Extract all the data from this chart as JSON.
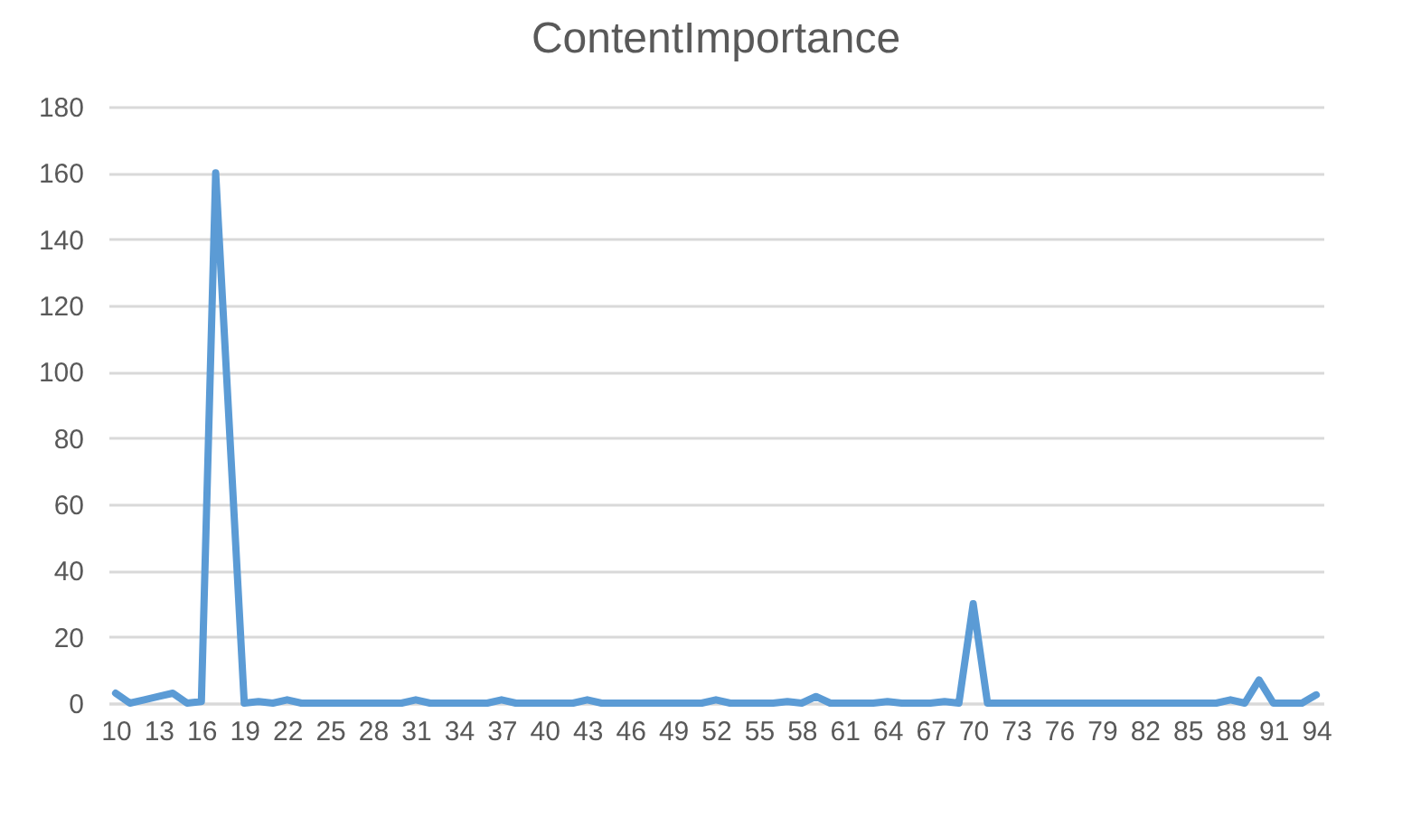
{
  "chart_data": {
    "type": "line",
    "title": "ContentImportance",
    "categories": [
      "10",
      null,
      null,
      "13",
      null,
      null,
      "16",
      null,
      null,
      "19",
      null,
      null,
      "22",
      null,
      null,
      "25",
      null,
      null,
      "28",
      null,
      null,
      "31",
      null,
      null,
      "34",
      null,
      null,
      "37",
      null,
      null,
      "40",
      null,
      null,
      "43",
      null,
      null,
      "46",
      null,
      null,
      "49",
      null,
      null,
      "52",
      null,
      null,
      "55",
      null,
      null,
      "58",
      null,
      null,
      "61",
      null,
      null,
      "64",
      null,
      null,
      "67",
      null,
      null,
      "70",
      null,
      null,
      "73",
      null,
      null,
      "76",
      null,
      null,
      "79",
      null,
      null,
      "82",
      null,
      null,
      "85",
      null,
      null,
      "88",
      null,
      null,
      "91",
      null,
      null,
      "94"
    ],
    "series": [
      {
        "color": "#5b9bd5",
        "values": [
          3,
          0,
          1,
          2,
          3,
          0,
          0.5,
          160,
          80,
          0,
          0.5,
          0,
          1,
          0,
          0,
          0,
          0,
          0,
          0,
          0,
          0,
          1,
          0,
          0,
          0,
          0,
          0,
          1,
          0,
          0,
          0,
          0,
          0,
          1,
          0,
          0,
          0,
          0,
          0,
          0,
          0,
          0,
          1,
          0,
          0,
          0,
          0,
          0.5,
          0,
          2,
          0,
          0,
          0,
          0,
          0.5,
          0,
          0,
          0,
          0.5,
          0,
          30,
          0,
          0,
          0,
          0,
          0,
          0,
          0,
          0,
          0,
          0,
          0,
          0,
          0,
          0,
          0,
          0,
          0,
          1,
          0,
          7,
          0,
          0,
          0,
          2.5
        ]
      }
    ],
    "ylim": [
      0,
      180
    ],
    "yticks": [
      0,
      20,
      40,
      60,
      80,
      100,
      120,
      140,
      160,
      180
    ],
    "grid": "y",
    "marker": "none",
    "line_style": "solid"
  }
}
